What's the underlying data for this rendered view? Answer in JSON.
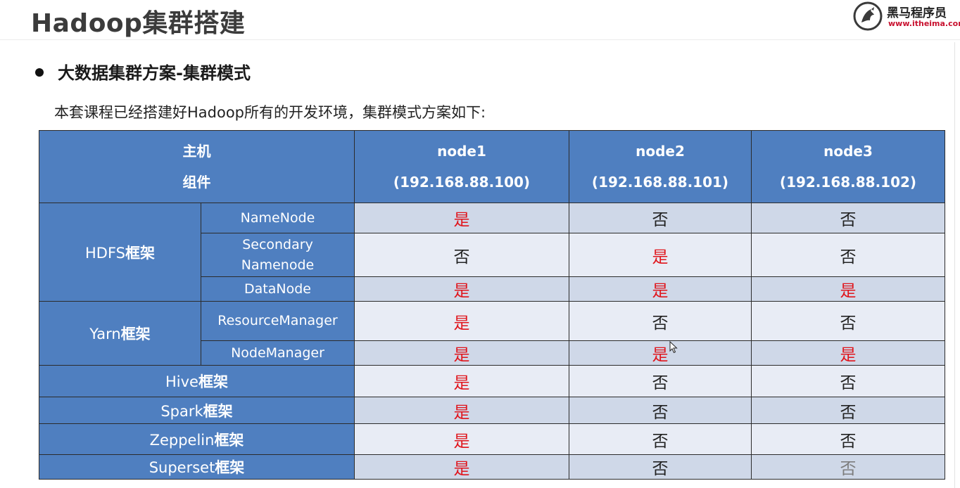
{
  "header": {
    "title": "Hadoop集群搭建",
    "logo": {
      "name": "黑马程序员",
      "url": "www.itheima.com",
      "icon": "horse-logo-icon"
    }
  },
  "section": {
    "heading": "大数据集群方案-集群模式"
  },
  "intro": "本套课程已经搭建好Hadoop所有的开发环境，集群模式方案如下:",
  "table": {
    "header": {
      "corner_line1": "主机",
      "corner_line2": "组件",
      "nodes": [
        {
          "name": "node1",
          "ip": "(192.168.88.100)"
        },
        {
          "name": "node2",
          "ip": "(192.168.88.101)"
        },
        {
          "name": "node3",
          "ip": "(192.168.88.102)"
        }
      ]
    },
    "groups": {
      "hdfs": {
        "name": "HDFS",
        "suffix": "框架"
      },
      "yarn": {
        "name": "Yarn",
        "suffix": "框架"
      }
    },
    "rows": [
      {
        "group": "hdfs",
        "component": "NameNode",
        "values": [
          "是",
          "否",
          "否"
        ]
      },
      {
        "group": "hdfs",
        "component_line1": "Secondary",
        "component_line2": "Namenode",
        "values": [
          "否",
          "是",
          "否"
        ]
      },
      {
        "group": "hdfs",
        "component": "DataNode",
        "values": [
          "是",
          "是",
          "是"
        ]
      },
      {
        "group": "yarn",
        "component": "ResourceManager",
        "values": [
          "是",
          "否",
          "否"
        ]
      },
      {
        "group": "yarn",
        "component": "NodeManager",
        "values": [
          "是",
          "是",
          "是"
        ]
      },
      {
        "name": "Hive",
        "suffix": "框架",
        "values": [
          "是",
          "否",
          "否"
        ]
      },
      {
        "name": "Spark",
        "suffix": "框架",
        "values": [
          "是",
          "否",
          "否"
        ]
      },
      {
        "name": "Zeppelin",
        "suffix": "框架",
        "values": [
          "是",
          "否",
          "否"
        ]
      },
      {
        "name": "Superset",
        "suffix": "框架",
        "values": [
          "是",
          "否",
          "否"
        ]
      }
    ]
  },
  "colors": {
    "header_blue": "#4f7fc0",
    "row_dark": "#cfd8e8",
    "row_light": "#e8ecf5",
    "yes_red": "#e0141b",
    "border": "#2b2b2b"
  }
}
